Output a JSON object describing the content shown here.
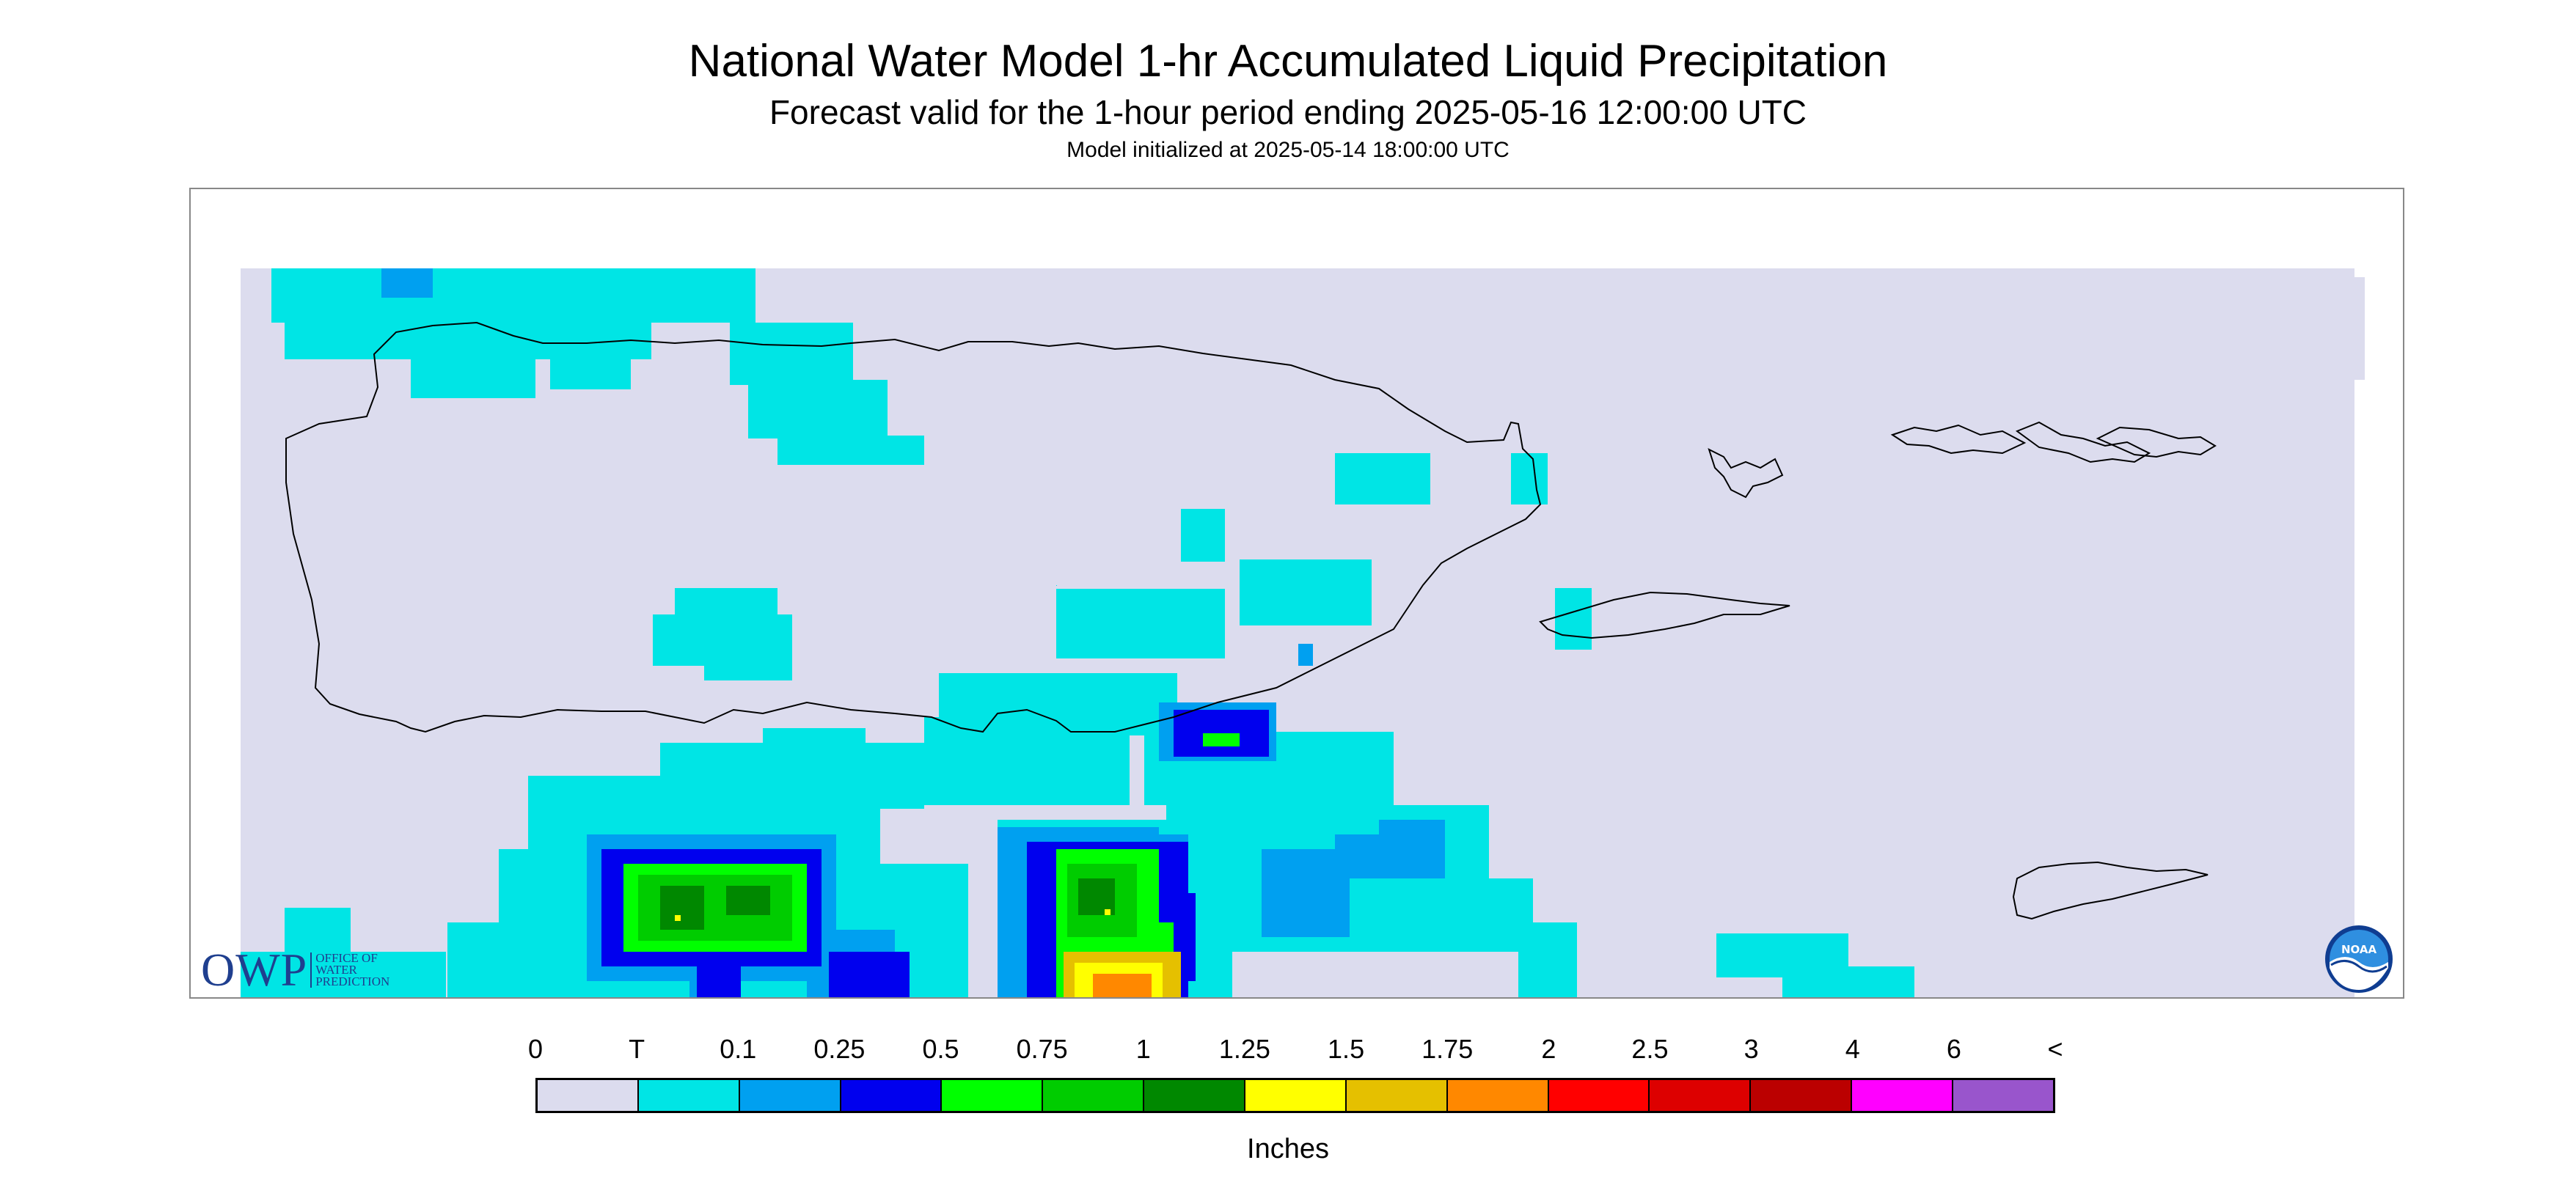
{
  "title": "National Water Model 1-hr Accumulated Liquid Precipitation",
  "subtitle": "Forecast valid for the 1-hour period ending 2025-05-16 12:00:00 UTC",
  "init_text": "Model initialized at 2025-05-14 18:00:00 UTC",
  "owp_logo": {
    "mark": "OWP",
    "text_lines": [
      "OFFICE OF",
      "WATER",
      "PREDICTION"
    ]
  },
  "noaa_logo": {
    "text": "NOAA",
    "icon": "noaa-logo-icon"
  },
  "map": {
    "background_color": "#dcdcee",
    "coastline_color": "#000000"
  },
  "legend": {
    "units": "Inches",
    "labels": [
      "0",
      "T",
      "0.1",
      "0.25",
      "0.5",
      "0.75",
      "1",
      "1.25",
      "1.5",
      "1.75",
      "2",
      "2.5",
      "3",
      "4",
      "6",
      "<"
    ],
    "colors": [
      "#dcdcee",
      "#00e5e5",
      "#00a0f0",
      "#0000ee",
      "#00ff00",
      "#00cc00",
      "#008800",
      "#ffff00",
      "#e5c000",
      "#ff8800",
      "#ff0000",
      "#dd0000",
      "#bb0000",
      "#ff00ff",
      "#9955cc"
    ]
  }
}
